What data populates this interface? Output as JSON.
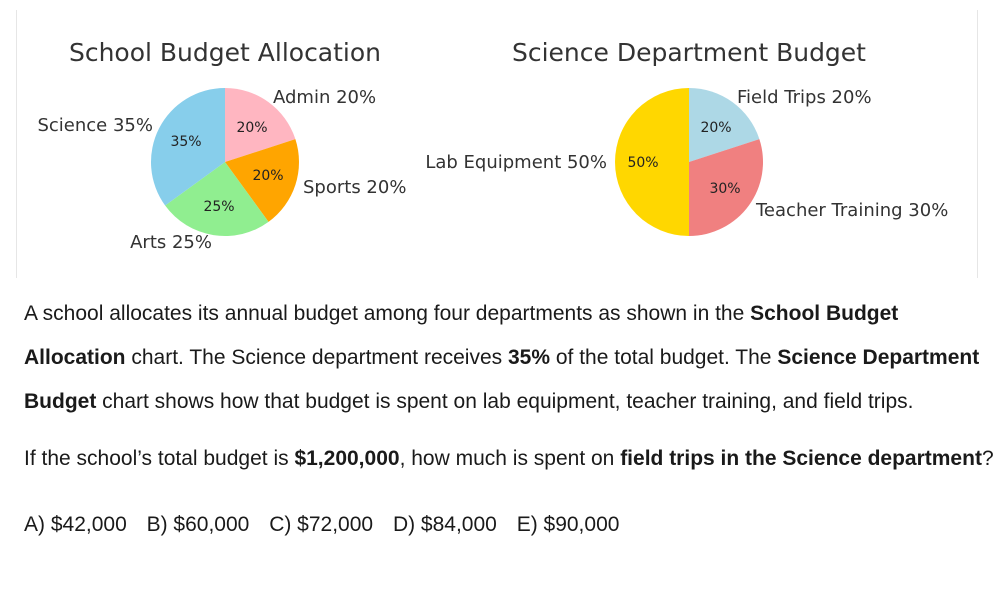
{
  "chart_data": [
    {
      "type": "pie",
      "title": "School Budget Allocation",
      "categories": [
        "Admin",
        "Sports",
        "Arts",
        "Science"
      ],
      "values": [
        20,
        20,
        25,
        35
      ],
      "outer_labels": [
        "Admin 20%",
        "Sports 20%",
        "Arts 25%",
        "Science 35%"
      ],
      "pct_labels": [
        "20%",
        "20%",
        "25%",
        "35%"
      ],
      "colors": [
        "#FFB6C1",
        "#FFA500",
        "#90EE90",
        "#87CEEB"
      ]
    },
    {
      "type": "pie",
      "title": "Science Department Budget",
      "categories": [
        "Field Trips",
        "Teacher Training",
        "Lab Equipment"
      ],
      "values": [
        20,
        30,
        50
      ],
      "outer_labels": [
        "Field Trips 20%",
        "Teacher Training 30%",
        "Lab Equipment 50%"
      ],
      "pct_labels": [
        "20%",
        "30%",
        "50%"
      ],
      "colors": [
        "#ADD8E6",
        "#F08080",
        "#FFD700"
      ]
    }
  ],
  "question": {
    "p1_a": "A school allocates its annual budget among four departments as shown in the ",
    "p1_b": "School Budget Allocation",
    "p1_c": " chart. The Science department receives ",
    "p1_d": "35%",
    "p1_e": " of the total budget. The ",
    "p1_f": "Science Department Budget",
    "p1_g": " chart shows how that budget is spent on lab equipment, teacher training, and field trips.",
    "p2_a": "If the school’s total budget is ",
    "p2_b": "$1,200,000",
    "p2_c": ", how much is spent on ",
    "p2_d": "field trips in the Science department",
    "p2_e": "?",
    "choices": [
      "A) $42,000",
      "B) $60,000",
      "C) $72,000",
      "D) $84,000",
      "E) $90,000"
    ]
  }
}
